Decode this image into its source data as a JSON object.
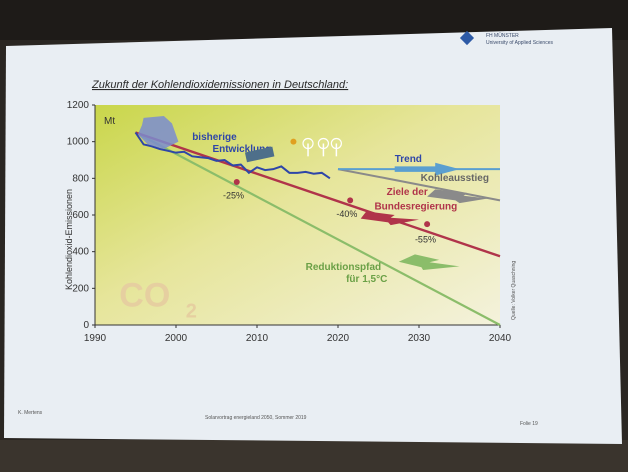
{
  "slide": {
    "title": "Zukunft der Kohlendioxidemissionen in Deutschland:",
    "logo_line1": "FH MÜNSTER",
    "logo_line2": "University of Applied Sciences",
    "footer_left": "K. Mertens",
    "footer_center": "Solarvortrag energieland 2050, Sommer 2019",
    "footer_right": "Folie 19",
    "source": "Quelle: Volker Quaschning",
    "co2_mark": "CO",
    "co2_sub": "2",
    "colors": {
      "history": "#2e46a8",
      "green": "#8bbd6a",
      "red": "#b0344a",
      "trend": "#5a9fd0",
      "grey": "#8a8a8a"
    }
  },
  "annotations": {
    "bisherige": "bisherige",
    "entwicklung": "Entwicklung",
    "trend": "Trend",
    "kohle": "Kohleausstieg",
    "ziele1": "Ziele der",
    "ziele2": "Bundesregierung",
    "pfad1": "Reduktionspfad",
    "pfad2": "für 1,5°C",
    "p25": "-25%",
    "p40": "-40%",
    "p55": "-55%"
  },
  "chart_data": {
    "type": "line",
    "title": "Zukunft der Kohlendioxidemissionen in Deutschland:",
    "xlabel": "",
    "ylabel": "Kohlendioxid-Emissionen",
    "yunit": "Mt",
    "xlim": [
      1990,
      2040
    ],
    "ylim": [
      0,
      1200
    ],
    "xticks": [
      1990,
      2000,
      2010,
      2020,
      2030,
      2040
    ],
    "yticks": [
      0,
      200,
      400,
      600,
      800,
      1000,
      1200
    ],
    "series": [
      {
        "name": "bisherige Entwicklung",
        "x": [
          1995,
          1996,
          1997,
          1998,
          1999,
          2000,
          2001,
          2002,
          2003,
          2004,
          2005,
          2006,
          2007,
          2008,
          2009,
          2010,
          2011,
          2012,
          2013,
          2014,
          2015,
          2016,
          2017,
          2018,
          2019
        ],
        "y": [
          1050,
          985,
          975,
          960,
          950,
          940,
          945,
          920,
          915,
          910,
          895,
          900,
          870,
          875,
          830,
          860,
          845,
          850,
          865,
          830,
          830,
          835,
          825,
          830,
          800
        ]
      },
      {
        "name": "Trend",
        "x": [
          2020,
          2040
        ],
        "y": [
          850,
          850
        ]
      },
      {
        "name": "Kohleausstieg",
        "x": [
          2020,
          2026,
          2040
        ],
        "y": [
          850,
          800,
          680
        ]
      },
      {
        "name": "Ziele der Bundesregierung",
        "x": [
          1995,
          2040
        ],
        "y": [
          1050,
          375
        ]
      },
      {
        "name": "Reduktionspfad für 1,5°C",
        "x": [
          1995,
          2040
        ],
        "y": [
          1050,
          0
        ]
      }
    ],
    "markers": [
      {
        "label": "-25%",
        "x": 2007.5,
        "y": 780
      },
      {
        "label": "-40%",
        "x": 2021.5,
        "y": 680
      },
      {
        "label": "-55%",
        "x": 2031,
        "y": 550
      }
    ]
  }
}
